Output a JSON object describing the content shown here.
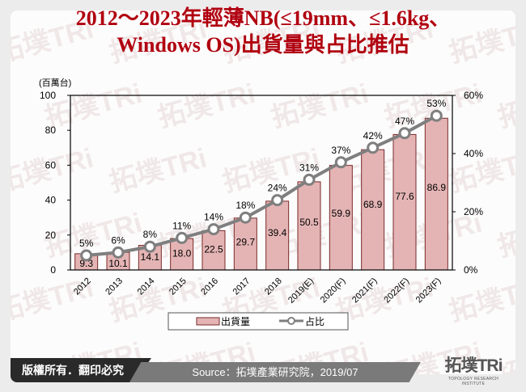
{
  "title": {
    "line1": "2012～2023年輕薄NB(≤19mm、≤1.6kg、",
    "line2": "Windows OS)出貨量與占比推估"
  },
  "footer": {
    "copyright": "版權所有．翻印必究",
    "source": "Source：拓墣產業研究院，2019/07",
    "logo_main": "拓墣TRi",
    "logo_sub": "TOPOLOGY RESEARCH INSTITUTE"
  },
  "watermark": "拓墣TRi",
  "chart_data": {
    "type": "bar+line",
    "title": "2012～2023年輕薄NB(≤19mm、≤1.6kg、Windows OS)出貨量與占比推估",
    "categories": [
      "2012",
      "2013",
      "2014",
      "2015",
      "2016",
      "2017",
      "2018",
      "2019(E)",
      "2020(F)",
      "2021(F)",
      "2022(F)",
      "2023(F)"
    ],
    "series": [
      {
        "name": "出貨量",
        "type": "bar",
        "axis": "left",
        "values": [
          9.3,
          10.1,
          14.1,
          18.0,
          22.5,
          29.7,
          39.4,
          50.5,
          59.9,
          68.9,
          77.6,
          86.9
        ],
        "labels": [
          "9.3",
          "10.1",
          "14.1",
          "18.0",
          "22.5",
          "29.7",
          "39.4",
          "50.5",
          "59.9",
          "68.9",
          "77.6",
          "86.9"
        ]
      },
      {
        "name": "占比",
        "type": "line",
        "axis": "right",
        "values": [
          5,
          6,
          8,
          11,
          14,
          18,
          24,
          31,
          37,
          42,
          47,
          53
        ],
        "labels": [
          "5%",
          "6%",
          "8%",
          "11%",
          "14%",
          "18%",
          "24%",
          "31%",
          "37%",
          "42%",
          "47%",
          "53%"
        ]
      }
    ],
    "ylabel": "(百萬台)",
    "ylim": [
      0,
      100
    ],
    "yticks": [
      "0",
      "20",
      "40",
      "60",
      "80",
      "100"
    ],
    "y2lim": [
      0,
      60
    ],
    "y2ticks": [
      "0%",
      "20%",
      "40%",
      "60%"
    ],
    "legend": [
      "出貨量",
      "占比"
    ],
    "legend_position": "bottom",
    "colors": {
      "bar_fill": "#e4b4b4",
      "bar_stroke": "#7a2a2a",
      "line": "#7f7f7f",
      "marker_fill": "#ffffff"
    }
  }
}
